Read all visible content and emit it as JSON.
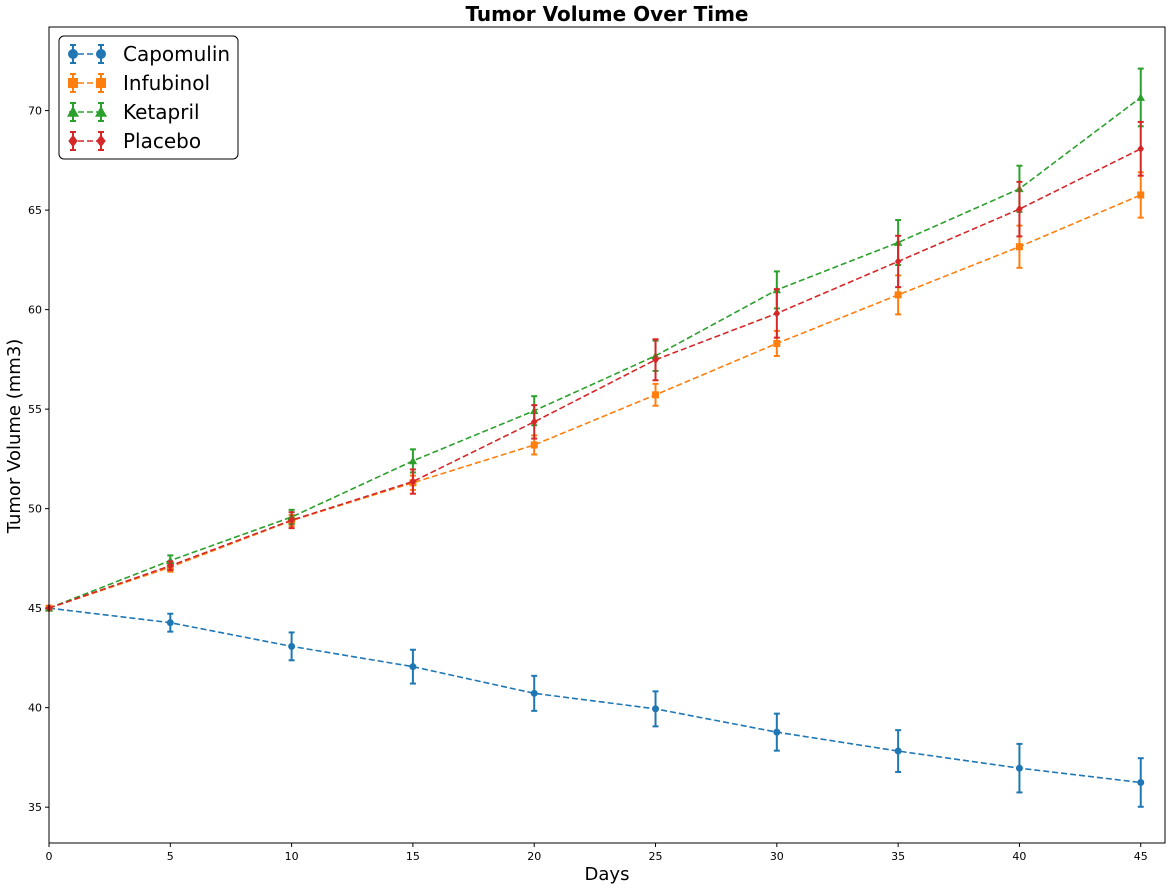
{
  "chart_data": {
    "type": "line",
    "title": "Tumor Volume Over Time",
    "xlabel": "Days",
    "ylabel": "Tumor Volume (mm3)",
    "xlim": [
      0,
      46
    ],
    "ylim": [
      33.2,
      74.2
    ],
    "x_ticks": [
      0,
      5,
      10,
      15,
      20,
      25,
      30,
      35,
      40,
      45
    ],
    "y_ticks": [
      35,
      40,
      45,
      50,
      55,
      60,
      65,
      70
    ],
    "x": [
      0,
      5,
      10,
      15,
      20,
      25,
      30,
      35,
      40,
      45
    ],
    "legend_position": "top-left",
    "grid": false,
    "series": [
      {
        "name": "Capomulin",
        "color": "#1f77b4",
        "marker": "circle",
        "values": [
          45.0,
          44.27,
          43.08,
          42.06,
          40.72,
          39.94,
          38.77,
          37.82,
          36.96,
          36.24
        ],
        "errors": [
          0.0,
          0.45,
          0.7,
          0.85,
          0.88,
          0.88,
          0.93,
          1.05,
          1.22,
          1.22
        ]
      },
      {
        "name": "Infubinol",
        "color": "#ff7f0e",
        "marker": "square",
        "values": [
          45.0,
          47.06,
          49.4,
          51.3,
          53.2,
          55.72,
          58.3,
          60.74,
          63.16,
          65.76
        ],
        "errors": [
          0.0,
          0.23,
          0.28,
          0.36,
          0.48,
          0.55,
          0.63,
          0.98,
          1.06,
          1.14
        ]
      },
      {
        "name": "Ketapril",
        "color": "#2ca02c",
        "marker": "triangle",
        "values": [
          45.0,
          47.39,
          49.58,
          52.4,
          54.92,
          57.68,
          60.99,
          63.37,
          66.07,
          70.66
        ],
        "errors": [
          0.0,
          0.26,
          0.36,
          0.58,
          0.73,
          0.76,
          0.93,
          1.13,
          1.16,
          1.45
        ]
      },
      {
        "name": "Placebo",
        "color": "#d62728",
        "marker": "diamond",
        "values": [
          45.0,
          47.13,
          49.42,
          51.36,
          54.36,
          57.48,
          59.81,
          62.42,
          65.05,
          68.08
        ],
        "errors": [
          0.0,
          0.22,
          0.4,
          0.61,
          0.84,
          1.03,
          1.22,
          1.29,
          1.37,
          1.35
        ]
      }
    ]
  }
}
